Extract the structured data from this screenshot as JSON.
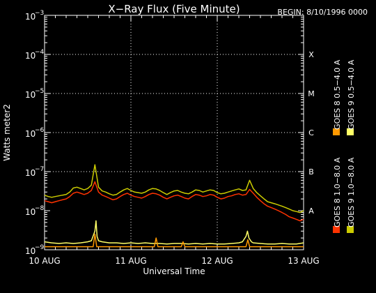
{
  "chart_data": {
    "type": "line",
    "title": "X−Ray Flux (Five Minute)",
    "begin_label": "BEGIN: 8/10/1996 0000",
    "xlabel": "Universal Time",
    "ylabel": "Watts meter2",
    "yscale": "log",
    "ylim": [
      1e-09,
      0.001
    ],
    "xlim_hours": [
      0,
      72
    ],
    "x_tick_labels": [
      "10 AUG",
      "11 AUG",
      "12 AUG",
      "13 AUG"
    ],
    "y_tick_exponents": [
      "−9",
      "−8",
      "−7",
      "−6",
      "−5",
      "−4",
      "−3"
    ],
    "y_tick_base": "10",
    "flare_classes": [
      {
        "label": "A",
        "flux": 1e-08
      },
      {
        "label": "B",
        "flux": 1e-07
      },
      {
        "label": "C",
        "flux": 1e-06
      },
      {
        "label": "M",
        "flux": 1e-05
      },
      {
        "label": "X",
        "flux": 0.0001
      }
    ],
    "grid": "dotted horizontal at decades; dotted vertical at day boundaries",
    "legend_position": "right-vertical",
    "series": [
      {
        "name": "GOES 8 1.0−8.0 A",
        "color": "#ff3300",
        "x_hours": [
          0,
          1,
          2,
          3,
          4,
          5,
          6,
          7,
          8,
          9,
          10,
          11,
          12,
          13,
          14,
          15,
          16,
          17,
          18,
          19,
          20,
          21,
          22,
          23,
          24,
          25,
          26,
          27,
          28,
          29,
          30,
          31,
          32,
          33,
          34,
          35,
          36,
          37,
          38,
          39,
          40,
          41,
          42,
          43,
          44,
          45,
          46,
          47,
          48,
          49,
          50,
          51,
          52,
          53,
          54,
          55,
          56,
          57,
          58,
          59,
          60,
          61,
          62,
          63,
          64,
          65,
          66,
          67,
          68,
          69,
          70,
          71,
          72
        ],
        "values": [
          1.8e-08,
          1.7e-08,
          1.6e-08,
          1.7e-08,
          1.8e-08,
          1.9e-08,
          2e-08,
          2.3e-08,
          2.8e-08,
          3e-08,
          2.8e-08,
          2.6e-08,
          2.8e-08,
          3.3e-08,
          5.5e-08,
          3e-08,
          2.5e-08,
          2.3e-08,
          2.1e-08,
          1.9e-08,
          2e-08,
          2.3e-08,
          2.6e-08,
          2.8e-08,
          2.5e-08,
          2.3e-08,
          2.2e-08,
          2.1e-08,
          2.3e-08,
          2.6e-08,
          2.8e-08,
          2.7e-08,
          2.5e-08,
          2.2e-08,
          2e-08,
          2.2e-08,
          2.4e-08,
          2.5e-08,
          2.3e-08,
          2.1e-08,
          2e-08,
          2.3e-08,
          2.6e-08,
          2.5e-08,
          2.3e-08,
          2.4e-08,
          2.6e-08,
          2.5e-08,
          2.2e-08,
          2e-08,
          2.1e-08,
          2.3e-08,
          2.4e-08,
          2.6e-08,
          2.7e-08,
          2.5e-08,
          2.6e-08,
          3.5e-08,
          2.8e-08,
          2.2e-08,
          1.8e-08,
          1.5e-08,
          1.3e-08,
          1.2e-08,
          1.1e-08,
          1e-08,
          9e-09,
          8e-09,
          7e-09,
          6.5e-09,
          6e-09,
          5.5e-09,
          6e-09
        ]
      },
      {
        "name": "GOES 8 0.5−4.0 A",
        "color": "#ff9900",
        "x_hours": [
          0,
          12.5,
          13.5,
          14,
          14.5,
          15.5,
          24,
          30.5,
          31,
          31.5,
          38,
          38.5,
          39,
          47,
          55,
          56,
          56.5,
          57,
          72
        ],
        "values": [
          1.2e-09,
          1.2e-09,
          1.2e-09,
          2.5e-09,
          1.2e-09,
          1.2e-09,
          1.2e-09,
          1.2e-09,
          2e-09,
          1.2e-09,
          1.2e-09,
          1.6e-09,
          1.2e-09,
          1.2e-09,
          1.2e-09,
          1.2e-09,
          1.8e-09,
          1.2e-09,
          1.2e-09
        ]
      },
      {
        "name": "GOES 9 1.0−8.0 A",
        "color": "#cccc00",
        "x_hours": [
          0,
          1,
          2,
          3,
          4,
          5,
          6,
          7,
          8,
          9,
          10,
          11,
          12,
          13,
          14,
          15,
          16,
          17,
          18,
          19,
          20,
          21,
          22,
          23,
          24,
          25,
          26,
          27,
          28,
          29,
          30,
          31,
          32,
          33,
          34,
          35,
          36,
          37,
          38,
          39,
          40,
          41,
          42,
          43,
          44,
          45,
          46,
          47,
          48,
          49,
          50,
          51,
          52,
          53,
          54,
          55,
          56,
          57,
          58,
          59,
          60,
          61,
          62,
          63,
          64,
          65,
          66,
          67,
          68,
          69,
          70,
          71,
          72
        ],
        "values": [
          2.5e-08,
          2.3e-08,
          2.2e-08,
          2.3e-08,
          2.4e-08,
          2.5e-08,
          2.6e-08,
          3e-08,
          3.8e-08,
          4e-08,
          3.7e-08,
          3.4e-08,
          3.7e-08,
          4.5e-08,
          1.5e-07,
          4e-08,
          3.2e-08,
          3e-08,
          2.7e-08,
          2.5e-08,
          2.6e-08,
          3e-08,
          3.4e-08,
          3.7e-08,
          3.3e-08,
          3e-08,
          2.9e-08,
          2.8e-08,
          3e-08,
          3.4e-08,
          3.7e-08,
          3.6e-08,
          3.3e-08,
          2.9e-08,
          2.6e-08,
          2.9e-08,
          3.2e-08,
          3.3e-08,
          3e-08,
          2.8e-08,
          2.7e-08,
          3e-08,
          3.4e-08,
          3.3e-08,
          3e-08,
          3.2e-08,
          3.4e-08,
          3.3e-08,
          2.9e-08,
          2.7e-08,
          2.8e-08,
          3e-08,
          3.2e-08,
          3.4e-08,
          3.6e-08,
          3.3e-08,
          3.4e-08,
          6e-08,
          3.7e-08,
          2.9e-08,
          2.4e-08,
          2e-08,
          1.7e-08,
          1.6e-08,
          1.5e-08,
          1.4e-08,
          1.3e-08,
          1.2e-08,
          1.1e-08,
          1e-08,
          9.5e-09,
          9e-09,
          1e-08
        ]
      },
      {
        "name": "GOES 9 0.5−4.0 A",
        "color": "#ffff66",
        "x_hours": [
          0,
          2,
          4,
          6,
          8,
          10,
          12,
          13,
          14,
          14.3,
          14.6,
          15,
          16,
          18,
          20,
          22,
          24,
          26,
          28,
          30,
          32,
          34,
          36,
          38,
          40,
          42,
          44,
          46,
          48,
          50,
          52,
          54,
          55,
          56,
          56.4,
          56.8,
          57.5,
          58,
          60,
          62,
          64,
          66,
          68,
          70,
          72
        ],
        "values": [
          1.6e-09,
          1.5e-09,
          1.45e-09,
          1.5e-09,
          1.45e-09,
          1.5e-09,
          1.6e-09,
          1.7e-09,
          3e-09,
          5.5e-09,
          2.2e-09,
          1.7e-09,
          1.6e-09,
          1.5e-09,
          1.5e-09,
          1.45e-09,
          1.5e-09,
          1.45e-09,
          1.5e-09,
          1.45e-09,
          1.45e-09,
          1.4e-09,
          1.45e-09,
          1.45e-09,
          1.4e-09,
          1.45e-09,
          1.4e-09,
          1.45e-09,
          1.4e-09,
          1.4e-09,
          1.45e-09,
          1.5e-09,
          1.6e-09,
          2.2e-09,
          3e-09,
          2e-09,
          1.6e-09,
          1.5e-09,
          1.45e-09,
          1.4e-09,
          1.4e-09,
          1.45e-09,
          1.4e-09,
          1.4e-09,
          1.5e-09
        ]
      }
    ]
  }
}
